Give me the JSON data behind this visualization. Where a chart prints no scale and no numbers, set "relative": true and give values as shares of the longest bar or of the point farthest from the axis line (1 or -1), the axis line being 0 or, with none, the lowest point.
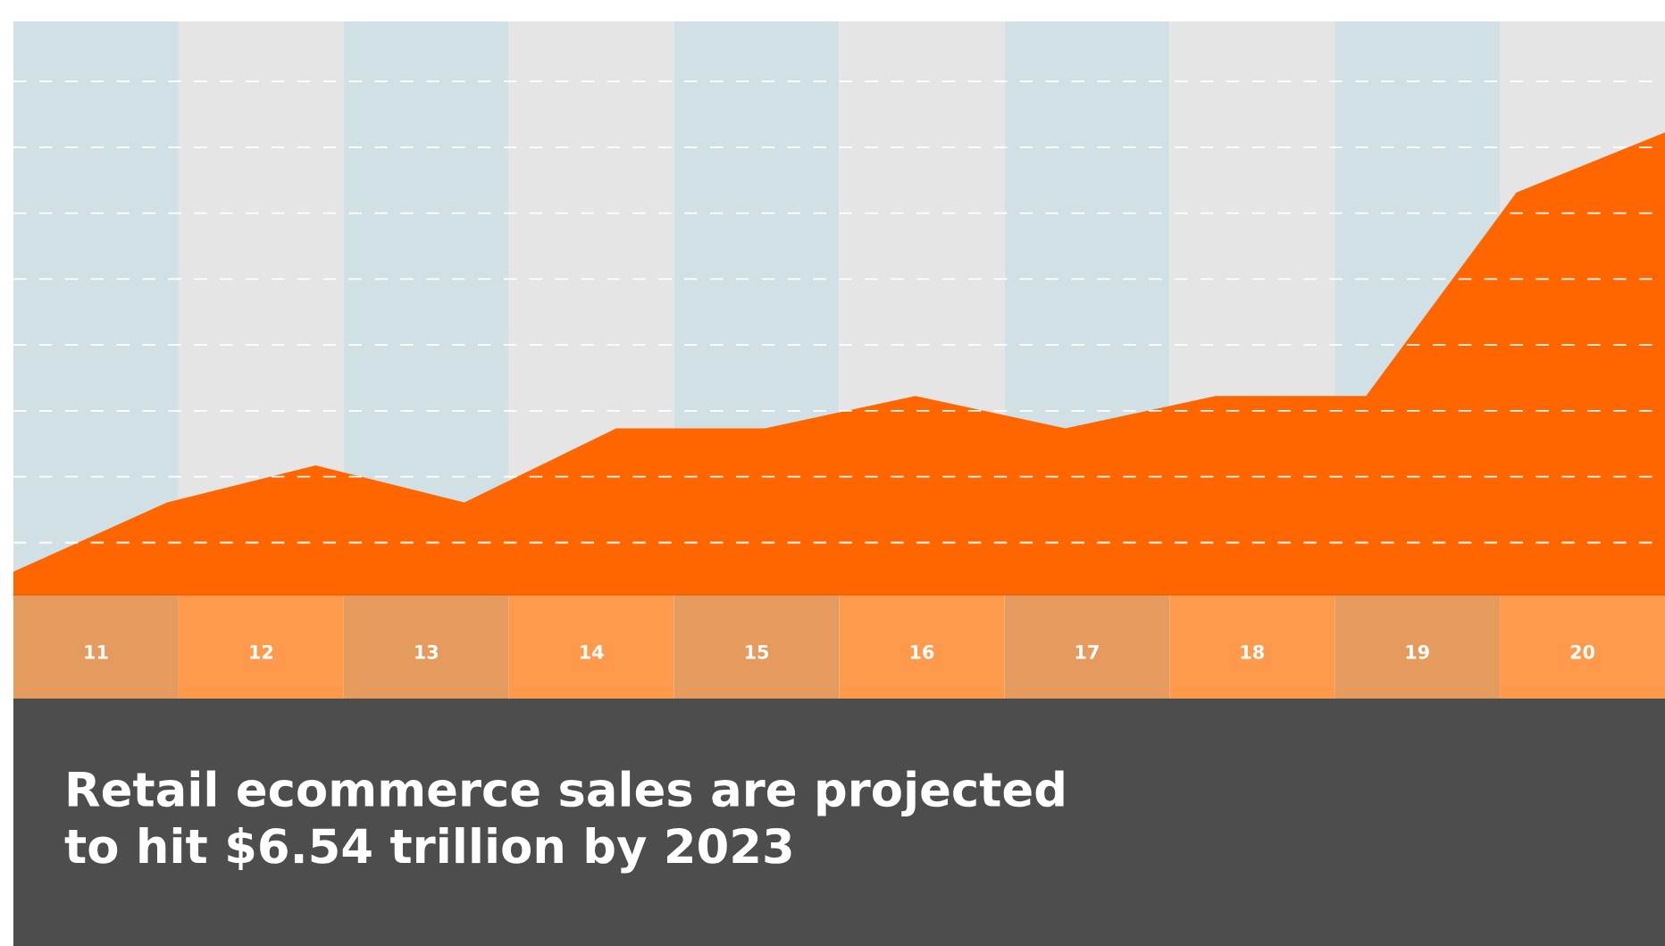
{
  "chart_data": {
    "type": "area",
    "title": "Retail ecommerce sales are projected\nto hit $6.54 trillion by 2023",
    "relative": true,
    "grid": "y",
    "line_style": "dashed",
    "bands": [
      {
        "axis": "x",
        "from": 10.5,
        "to": 11.5,
        "color": "#d1e0e5"
      },
      {
        "axis": "x",
        "from": 11.5,
        "to": 12.5,
        "color": "#e5e5e5"
      },
      {
        "axis": "x",
        "from": 12.5,
        "to": 13.5,
        "color": "#d1e0e5"
      },
      {
        "axis": "x",
        "from": 13.5,
        "to": 14.5,
        "color": "#e5e5e5"
      },
      {
        "axis": "x",
        "from": 14.5,
        "to": 15.5,
        "color": "#d1e0e5"
      },
      {
        "axis": "x",
        "from": 15.5,
        "to": 16.5,
        "color": "#e5e5e5"
      },
      {
        "axis": "x",
        "from": 16.5,
        "to": 17.5,
        "color": "#d1e0e5"
      },
      {
        "axis": "x",
        "from": 17.5,
        "to": 18.5,
        "color": "#e5e5e5"
      },
      {
        "axis": "x",
        "from": 18.5,
        "to": 19.5,
        "color": "#d1e0e5"
      },
      {
        "axis": "x",
        "from": 19.5,
        "to": 20.5,
        "color": "#e5e5e5"
      }
    ],
    "xlim": [
      10.5,
      20.5
    ],
    "xticks": [
      11,
      12,
      13,
      14,
      15,
      16,
      17,
      18,
      19,
      20
    ],
    "series": [
      {
        "color": "#ff6600",
        "x": [
          10.5,
          11.43,
          12.33,
          13.23,
          14.15,
          15.05,
          15.96,
          16.87,
          17.78,
          18.69,
          19.6,
          20.5
        ],
        "values": [
          0.05,
          0.2,
          0.28,
          0.2,
          0.36,
          0.36,
          0.43,
          0.36,
          0.43,
          0.43,
          0.87,
          1
        ]
      }
    ]
  }
}
